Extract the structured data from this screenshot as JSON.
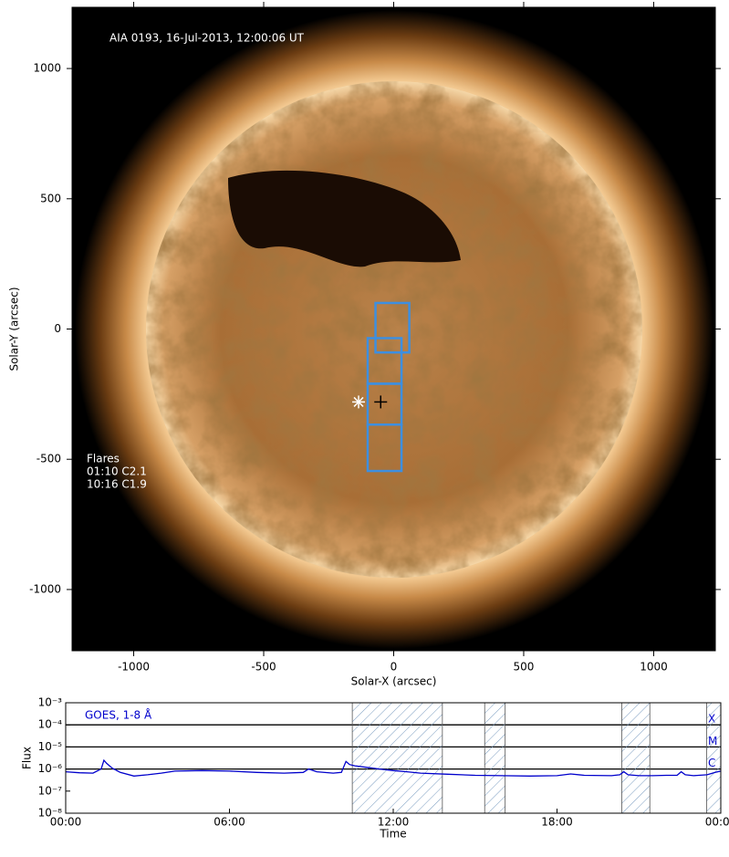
{
  "chart_data": [
    {
      "type": "image",
      "annotation": "AIA 0193, 16-Jul-2013, 12:00:06 UT",
      "flare_title": "Flares",
      "flares": [
        "01:10 C2.1",
        "10:16 C1.9"
      ],
      "x_label": "Solar-X (arcsec)",
      "y_label": "Solar-Y (arcsec)",
      "xlim": [
        -1237,
        1237
      ],
      "ylim": [
        -1235,
        1235
      ],
      "xticks": [
        -1000,
        -500,
        0,
        500,
        1000
      ],
      "yticks": [
        -1000,
        -500,
        0,
        500,
        1000
      ],
      "box_color": "#3d8fe0",
      "boxes": [
        {
          "x": [
            -70,
            60
          ],
          "y": [
            -90,
            100
          ]
        },
        {
          "x": [
            -100,
            30
          ],
          "y": [
            -210,
            -35
          ]
        },
        {
          "x": [
            -100,
            30
          ],
          "y": [
            -367,
            -210
          ]
        },
        {
          "x": [
            -100,
            30
          ],
          "y": [
            -545,
            -367
          ]
        }
      ],
      "markers": {
        "x": [
          -135,
          -50
        ],
        "y": [
          -280,
          -280
        ]
      }
    },
    {
      "type": "line",
      "legend": "GOES, 1-8 Å",
      "x_label": "Time",
      "y_label": "Flux",
      "log_y": true,
      "color": "#0000cc",
      "xlim": [
        0,
        24
      ],
      "ylim": [
        1e-08,
        0.001
      ],
      "xticks": [
        {
          "value": 0,
          "label": "00:00"
        },
        {
          "value": 6,
          "label": "06:00"
        },
        {
          "value": 12,
          "label": "12:00"
        },
        {
          "value": 18,
          "label": "18:00"
        },
        {
          "value": 24,
          "label": "00:00"
        }
      ],
      "yticks": [
        {
          "value": 1e-08,
          "label": "10⁻⁸"
        },
        {
          "value": 1e-07,
          "label": "10⁻⁷"
        },
        {
          "value": 1e-06,
          "label": "10⁻⁶"
        },
        {
          "value": 1e-05,
          "label": "10⁻⁵"
        },
        {
          "value": 0.0001,
          "label": "10⁻⁴"
        },
        {
          "value": 0.001,
          "label": "10⁻³"
        }
      ],
      "levels": [
        {
          "value": 0.0001,
          "label": "X"
        },
        {
          "value": 1e-05,
          "label": "M"
        },
        {
          "value": 1e-06,
          "label": "C"
        }
      ],
      "shaded_intervals": [
        [
          10.5,
          13.8
        ],
        [
          15.35,
          16.1
        ],
        [
          20.37,
          21.4
        ],
        [
          23.48,
          24
        ]
      ],
      "x": [
        0,
        0.5,
        1.0,
        1.3,
        1.4,
        1.5,
        1.7,
        2.0,
        2.5,
        3.0,
        3.5,
        4.0,
        5.0,
        6.0,
        7.0,
        8.0,
        8.7,
        8.9,
        9.2,
        9.8,
        10.1,
        10.27,
        10.4,
        10.6,
        11.0,
        11.5,
        12.0,
        12.5,
        13.0,
        14.0,
        15,
        16,
        17,
        18,
        18.5,
        19,
        20,
        20.3,
        20.45,
        20.6,
        21,
        21.5,
        22,
        22.4,
        22.55,
        22.7,
        23,
        23.5,
        23.8,
        24
      ],
      "values": [
        7.5e-07,
        6.8e-07,
        6.5e-07,
        1e-06,
        2.5e-06,
        1.8e-06,
        1.1e-06,
        7e-07,
        4.8e-07,
        5.5e-07,
        6.5e-07,
        8e-07,
        8.5e-07,
        8e-07,
        7e-07,
        6.5e-07,
        7e-07,
        1e-06,
        7.5e-07,
        6.5e-07,
        7e-07,
        2.2e-06,
        1.6e-06,
        1.4e-06,
        1.2e-06,
        1e-06,
        8.5e-07,
        7.5e-07,
        6.5e-07,
        5.8e-07,
        5.2e-07,
        5e-07,
        4.8e-07,
        5e-07,
        6e-07,
        5.2e-07,
        5e-07,
        5.5e-07,
        7.5e-07,
        5.5e-07,
        5e-07,
        5e-07,
        5.2e-07,
        5.2e-07,
        7.5e-07,
        5.5e-07,
        5e-07,
        5.5e-07,
        7e-07,
        8e-07
      ]
    }
  ]
}
